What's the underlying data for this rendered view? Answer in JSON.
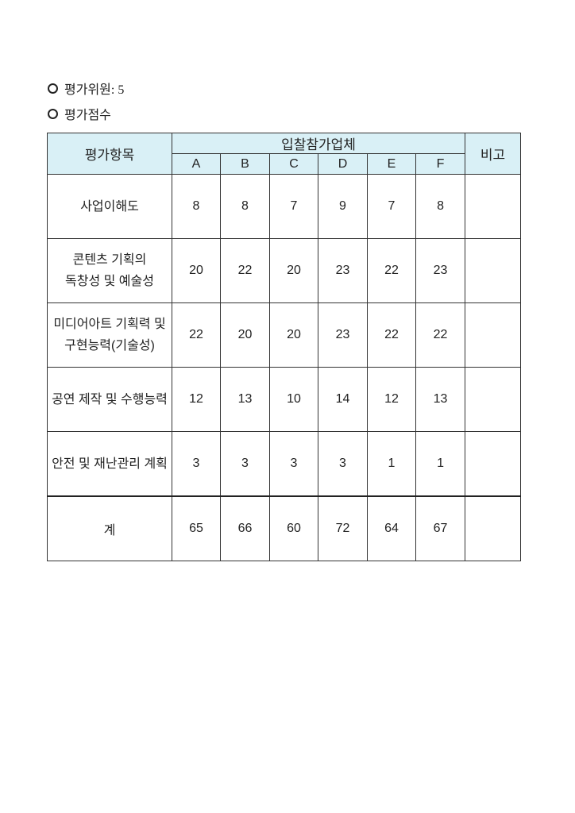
{
  "lines": [
    {
      "icon": "circle-bullet-icon",
      "text": "평가위원: 5"
    },
    {
      "icon": "circle-bullet-icon",
      "text": "평가점수"
    }
  ],
  "table": {
    "header_item": "평가항목",
    "header_group": "입찰참가업체",
    "header_note": "비고",
    "companies": [
      "A",
      "B",
      "C",
      "D",
      "E",
      "F"
    ],
    "rows": [
      {
        "item": [
          "사업이해도"
        ],
        "scores": [
          "8",
          "8",
          "7",
          "9",
          "7",
          "8"
        ],
        "note": ""
      },
      {
        "item": [
          "콘텐츠 기획의",
          "독창성 및 예술성"
        ],
        "scores": [
          "20",
          "22",
          "20",
          "23",
          "22",
          "23"
        ],
        "note": ""
      },
      {
        "item": [
          "미디어아트 기획력 및",
          "구현능력(기술성)"
        ],
        "scores": [
          "22",
          "20",
          "20",
          "23",
          "22",
          "22"
        ],
        "note": ""
      },
      {
        "item": [
          "공연 제작 및 수행능력"
        ],
        "scores": [
          "12",
          "13",
          "10",
          "14",
          "12",
          "13"
        ],
        "note": ""
      },
      {
        "item": [
          "안전 및 재난관리 계획"
        ],
        "scores": [
          "3",
          "3",
          "3",
          "3",
          "1",
          "1"
        ],
        "note": ""
      }
    ],
    "total": {
      "item": "계",
      "scores": [
        "65",
        "66",
        "60",
        "72",
        "64",
        "67"
      ],
      "note": ""
    }
  },
  "colors": {
    "header_fill": "#d9f0f6",
    "border": "#333333"
  }
}
